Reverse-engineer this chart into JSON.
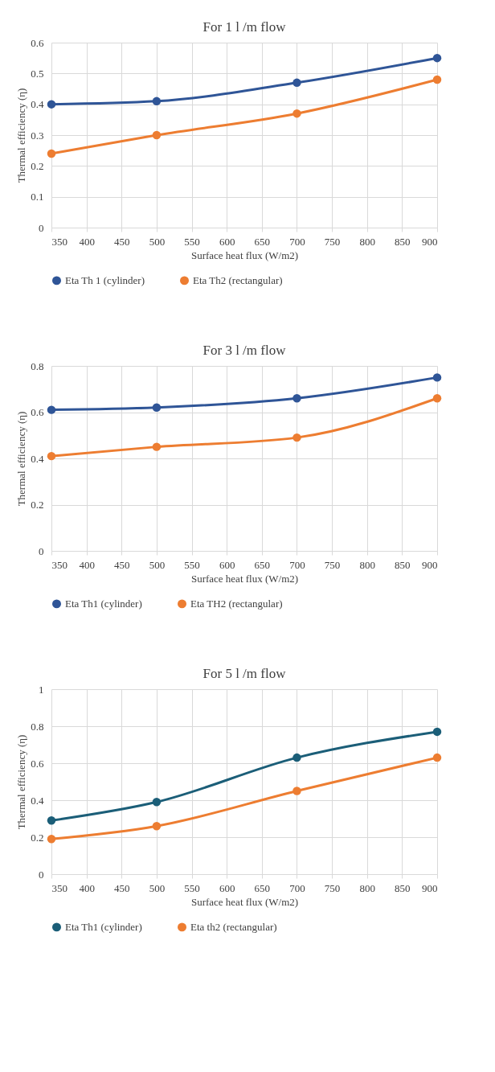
{
  "chart_data": [
    {
      "type": "line",
      "title": "For 1 l /m flow",
      "xlabel": "Surface heat flux (W/m2)",
      "ylabel": "Thermal efficiency (η)",
      "x": [
        350,
        500,
        700,
        900
      ],
      "xlim": [
        350,
        900
      ],
      "xticks": [
        350,
        400,
        450,
        500,
        550,
        600,
        650,
        700,
        750,
        800,
        850,
        900
      ],
      "ylim": [
        0,
        0.6
      ],
      "yticks": [
        0,
        0.1,
        0.2,
        0.3,
        0.4,
        0.5,
        0.6
      ],
      "grid": true,
      "legend": "bottom",
      "marker": "circle",
      "line_style": "solid",
      "series": [
        {
          "name": "Eta Th 1 (cylinder)",
          "color": "#2f5597",
          "values": [
            0.4,
            0.41,
            0.47,
            0.55
          ]
        },
        {
          "name": "Eta Th2 (rectangular)",
          "color": "#ed7d31",
          "values": [
            0.24,
            0.3,
            0.37,
            0.48
          ]
        }
      ]
    },
    {
      "type": "line",
      "title": "For 3 l /m flow",
      "xlabel": "Surface heat flux (W/m2)",
      "ylabel": "Thermal efficiency (η)",
      "x": [
        350,
        500,
        700,
        900
      ],
      "xlim": [
        350,
        900
      ],
      "xticks": [
        350,
        400,
        450,
        500,
        550,
        600,
        650,
        700,
        750,
        800,
        850,
        900
      ],
      "ylim": [
        0,
        0.8
      ],
      "yticks": [
        0,
        0.2,
        0.4,
        0.6,
        0.8
      ],
      "grid": true,
      "legend": "bottom",
      "marker": "circle",
      "line_style": "solid",
      "series": [
        {
          "name": "Eta Th1 (cylinder)",
          "color": "#2f5597",
          "values": [
            0.61,
            0.62,
            0.66,
            0.75
          ]
        },
        {
          "name": "Eta TH2 (rectangular)",
          "color": "#ed7d31",
          "values": [
            0.41,
            0.45,
            0.49,
            0.66
          ]
        }
      ]
    },
    {
      "type": "line",
      "title": "For 5 l /m flow",
      "xlabel": "Surface heat flux (W/m2)",
      "ylabel": "Thermal efficiency (η)",
      "x": [
        350,
        500,
        700,
        900
      ],
      "xlim": [
        350,
        900
      ],
      "xticks": [
        350,
        400,
        450,
        500,
        550,
        600,
        650,
        700,
        750,
        800,
        850,
        900
      ],
      "ylim": [
        0,
        1
      ],
      "yticks": [
        0,
        0.2,
        0.4,
        0.6,
        0.8,
        1
      ],
      "grid": true,
      "legend": "bottom",
      "marker": "circle",
      "line_style": "solid",
      "series": [
        {
          "name": "Eta Th1 (cylinder)",
          "color": "#1b5e78",
          "values": [
            0.29,
            0.39,
            0.63,
            0.77
          ]
        },
        {
          "name": "Eta th2 (rectangular)",
          "color": "#ed7d31",
          "values": [
            0.19,
            0.26,
            0.45,
            0.63
          ]
        }
      ]
    }
  ]
}
